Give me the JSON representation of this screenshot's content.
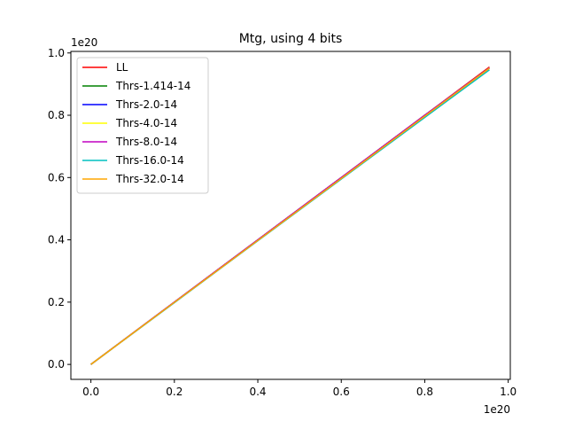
{
  "chart_data": {
    "type": "line",
    "title": "Mtg, using 4 bits",
    "xlabel": "",
    "ylabel": "",
    "x_offset_text": "1e20",
    "y_offset_text": "1e20",
    "xlim": [
      -0.048,
      1.005
    ],
    "ylim": [
      -0.048,
      1.005
    ],
    "x_ticks": [
      0.0,
      0.2,
      0.4,
      0.6,
      0.8,
      1.0
    ],
    "x_tick_labels": [
      "0.0",
      "0.2",
      "0.4",
      "0.6",
      "0.8",
      "1.0"
    ],
    "y_ticks": [
      0.0,
      0.2,
      0.4,
      0.6,
      0.8,
      1.0
    ],
    "y_tick_labels": [
      "0.0",
      "0.2",
      "0.4",
      "0.6",
      "0.8",
      "1.0"
    ],
    "grid": false,
    "legend_position": "upper-left",
    "series": [
      {
        "name": "LL",
        "color": "#ff0000",
        "x": [
          0.0,
          0.2,
          0.4,
          0.6,
          0.8,
          0.955
        ],
        "y": [
          0.0,
          0.2,
          0.4,
          0.6,
          0.8,
          0.955
        ]
      },
      {
        "name": "Thrs-1.414-14",
        "color": "#008000",
        "x": [
          0.0,
          0.2,
          0.4,
          0.6,
          0.8,
          0.955
        ],
        "y": [
          0.0,
          0.2,
          0.4,
          0.6,
          0.8,
          0.952
        ]
      },
      {
        "name": "Thrs-2.0-14",
        "color": "#0000ff",
        "x": [
          0.0,
          0.2,
          0.4,
          0.6,
          0.8,
          0.955
        ],
        "y": [
          0.0,
          0.2,
          0.4,
          0.6,
          0.8,
          0.952
        ]
      },
      {
        "name": "Thrs-4.0-14",
        "color": "#ffff00",
        "x": [
          0.0,
          0.2,
          0.4,
          0.6,
          0.8,
          0.955
        ],
        "y": [
          0.0,
          0.2,
          0.4,
          0.6,
          0.8,
          0.952
        ]
      },
      {
        "name": "Thrs-8.0-14",
        "color": "#c000c0",
        "x": [
          0.0,
          0.2,
          0.4,
          0.6,
          0.8,
          0.955
        ],
        "y": [
          0.0,
          0.2,
          0.4,
          0.6,
          0.8,
          0.952
        ]
      },
      {
        "name": "Thrs-16.0-14",
        "color": "#00c0c0",
        "x": [
          0.0,
          0.2,
          0.4,
          0.6,
          0.8,
          0.955
        ],
        "y": [
          0.0,
          0.198,
          0.397,
          0.595,
          0.793,
          0.946
        ]
      },
      {
        "name": "Thrs-32.0-14",
        "color": "#ffa500",
        "x": [
          0.0,
          0.2,
          0.4,
          0.6,
          0.8,
          0.955
        ],
        "y": [
          0.0,
          0.199,
          0.398,
          0.597,
          0.797,
          0.951
        ]
      }
    ]
  }
}
